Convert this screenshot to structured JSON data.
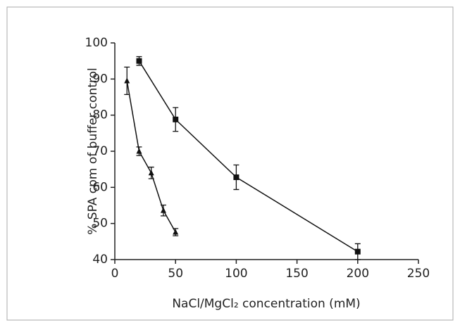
{
  "chart_data": {
    "type": "line",
    "xlabel": "NaCl/MgCl₂ concentration (mM)",
    "ylabel": "% SPA cpm of buffer control",
    "xlim": [
      0,
      250
    ],
    "xticks": [
      0,
      50,
      100,
      150,
      200,
      250
    ],
    "ylim": [
      40,
      100
    ],
    "yticks": [
      40,
      50,
      60,
      70,
      80,
      90,
      100
    ],
    "series": [
      {
        "color": "#111111",
        "marker": "square",
        "x": [
          20,
          50,
          100,
          200
        ],
        "values": [
          95,
          78.8,
          62.8,
          42.2
        ],
        "errors": [
          1.2,
          3.3,
          3.4,
          2.2
        ]
      },
      {
        "color": "#111111",
        "marker": "triangle",
        "x": [
          10,
          20,
          30,
          40,
          50
        ],
        "values": [
          89.5,
          70,
          64,
          53.6,
          47.6
        ],
        "errors": [
          3.8,
          1.2,
          1.6,
          1.5,
          1.0
        ]
      }
    ]
  }
}
